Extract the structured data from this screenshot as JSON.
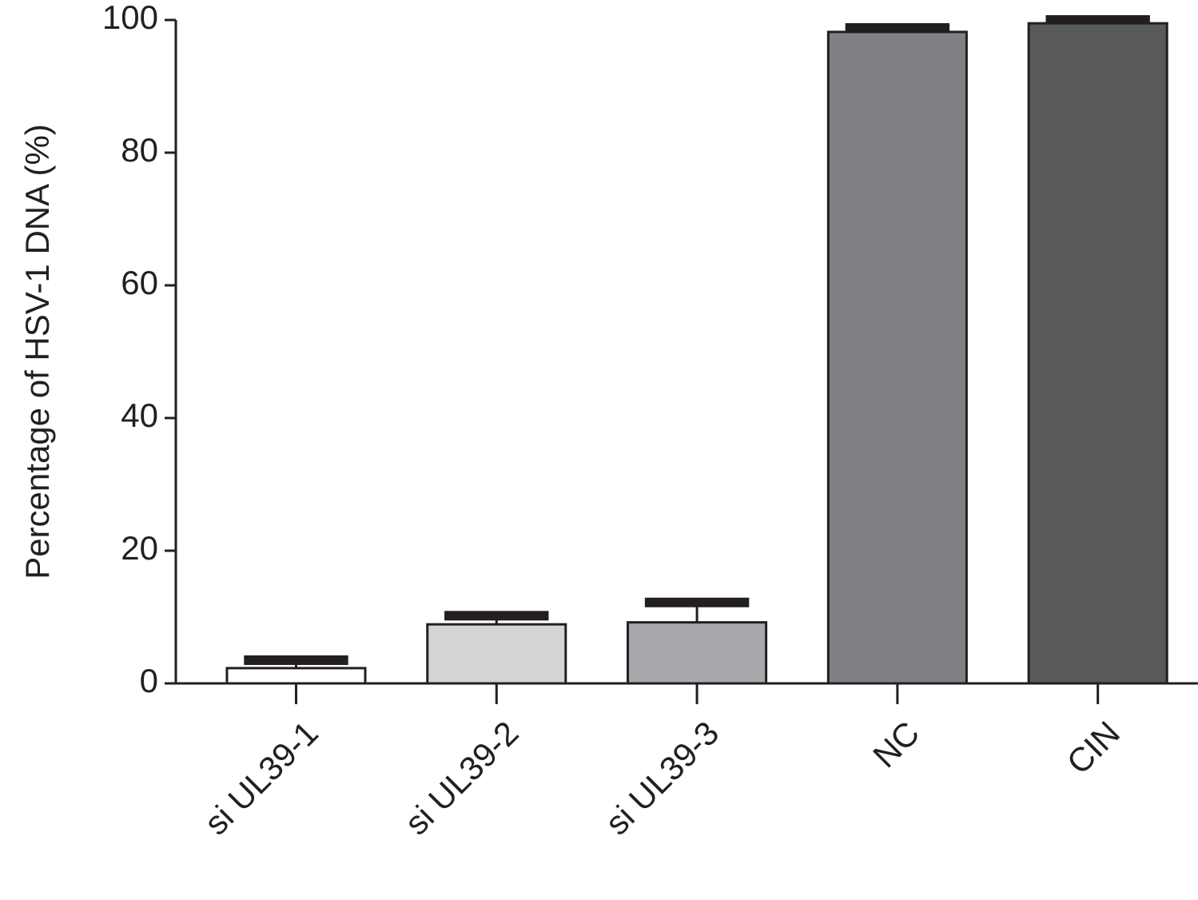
{
  "chart_data": {
    "type": "bar",
    "y_label": "Percentage of HSV-1 DNA (%)",
    "categories": [
      "si UL39-1",
      "si UL39-2",
      "si UL39-3",
      "NC",
      "CIN"
    ],
    "values": [
      2.3,
      8.9,
      9.2,
      98.2,
      99.5
    ],
    "errors": [
      1.2,
      1.3,
      3.0,
      0.6,
      0.5
    ],
    "colors": [
      "#ffffff",
      "#d3d4d6",
      "#a7a8ab",
      "#808184",
      "#58595b"
    ],
    "ylim": [
      0,
      100
    ],
    "yticks": [
      0,
      20,
      40,
      60,
      80,
      100
    ]
  }
}
